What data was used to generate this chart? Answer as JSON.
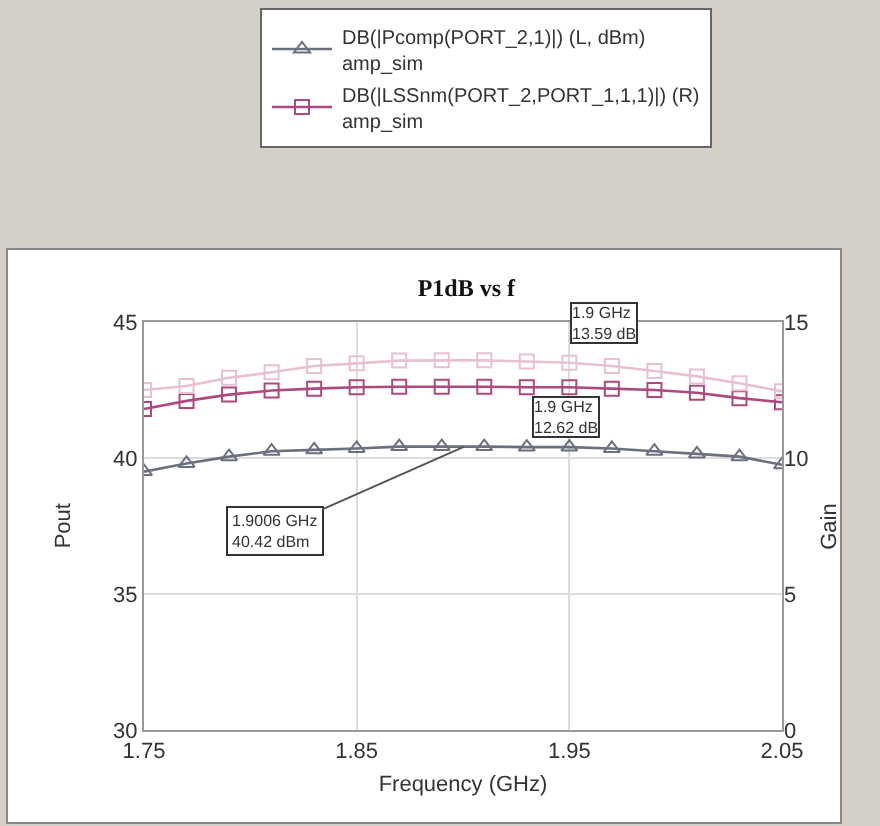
{
  "chart_data": {
    "type": "line",
    "title": "P1dB vs f",
    "xlabel": "Frequency (GHz)",
    "ylabel": "Pout",
    "y2label": "Gain",
    "x": [
      1.75,
      1.77,
      1.79,
      1.81,
      1.83,
      1.85,
      1.87,
      1.89,
      1.91,
      1.93,
      1.95,
      1.97,
      1.99,
      2.01,
      2.03,
      2.05
    ],
    "series": [
      {
        "name": "DB(|Pcomp(PORT_2,1)|) (L, dBm)\namp_sim",
        "color": "#6b7080",
        "marker": "triangle",
        "values": [
          39.5,
          39.8,
          40.05,
          40.25,
          40.3,
          40.35,
          40.42,
          40.42,
          40.42,
          40.4,
          40.4,
          40.35,
          40.25,
          40.15,
          40.05,
          39.75
        ]
      },
      {
        "name": "DB(|LSSnm(PORT_2,PORT_1,1,1)|) (R)\namp_sim",
        "color": "#b04880",
        "marker": "square",
        "axis": "y2",
        "values": [
          11.8,
          12.1,
          12.33,
          12.48,
          12.55,
          12.6,
          12.62,
          12.62,
          12.62,
          12.6,
          12.6,
          12.55,
          12.5,
          12.4,
          12.2,
          12.05
        ]
      },
      {
        "color": "#e8c0d4",
        "marker": "square",
        "axis": "y2",
        "values": [
          12.5,
          12.65,
          12.95,
          13.15,
          13.38,
          13.48,
          13.58,
          13.59,
          13.59,
          13.55,
          13.5,
          13.38,
          13.2,
          13.0,
          12.75,
          12.45
        ]
      }
    ],
    "annotations": [
      "1.9 GHz\n13.59 dB",
      "1.9 GHz\n12.62 dB",
      {
        "text": "1.9006 GHz\n40.42 dBm",
        "x": 1.9006,
        "y": 40.42
      }
    ],
    "xlim": [
      1.75,
      2.05
    ],
    "xticks": [
      1.75,
      1.85,
      1.95,
      2.05
    ],
    "ylim": [
      30,
      45
    ],
    "yticks": [
      30,
      35,
      40,
      45
    ],
    "y2lim": [
      0,
      15
    ],
    "y2ticks": [
      0,
      5,
      10,
      15
    ],
    "grid": true,
    "legend": "top",
    "line_style": "solid"
  }
}
